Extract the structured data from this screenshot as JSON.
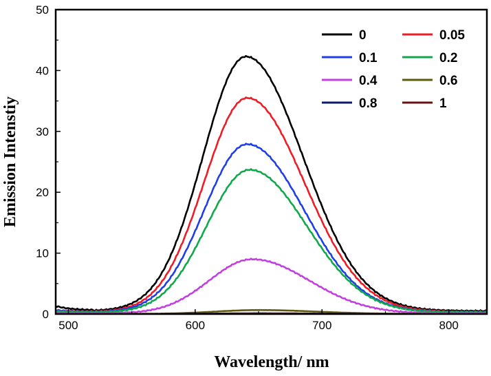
{
  "chart_data": {
    "type": "line",
    "title": "",
    "xlabel": "Wavelength/ nm",
    "ylabel": "Emission Intenstiy",
    "xlim": [
      490,
      830
    ],
    "ylim": [
      0,
      50
    ],
    "x_ticks": [
      500,
      600,
      700,
      800
    ],
    "y_ticks": [
      0,
      10,
      20,
      30,
      40,
      50
    ],
    "legend_position": "top-right",
    "series": [
      {
        "name": "0",
        "color": "#000000",
        "peak_x": 640,
        "peak_y": 42.3,
        "baseline": 0.5,
        "offset_start": 0.8
      },
      {
        "name": "0.05",
        "color": "#ee1c25",
        "peak_x": 641,
        "peak_y": 35.5,
        "baseline": 0.35,
        "offset_start": 0.3
      },
      {
        "name": "0.1",
        "color": "#1f3ee8",
        "peak_x": 641,
        "peak_y": 27.9,
        "baseline": 0.3,
        "offset_start": 0.3
      },
      {
        "name": "0.2",
        "color": "#10a84a",
        "peak_x": 643,
        "peak_y": 23.7,
        "baseline": 0.25,
        "offset_start": 0.2
      },
      {
        "name": "0.4",
        "color": "#c33fe0",
        "peak_x": 645,
        "peak_y": 9.0,
        "baseline": 0.1,
        "offset_start": 0.1
      },
      {
        "name": "0.6",
        "color": "#5b5a0e",
        "peak_x": 650,
        "peak_y": 0.65,
        "baseline": 0.02,
        "offset_start": 0.0
      },
      {
        "name": "0.8",
        "color": "#0a1a6e",
        "peak_x": 650,
        "peak_y": 0.12,
        "baseline": 0.0,
        "offset_start": 0.0
      },
      {
        "name": "1",
        "color": "#6a1010",
        "peak_x": 650,
        "peak_y": 0.05,
        "baseline": 0.0,
        "offset_start": 0.0
      }
    ]
  }
}
